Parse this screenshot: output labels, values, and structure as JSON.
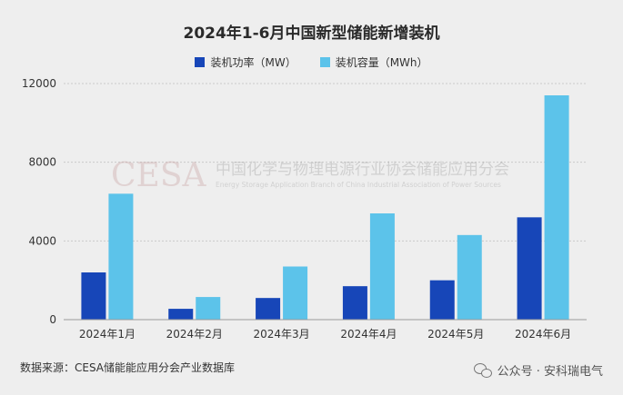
{
  "chart_data": {
    "type": "bar",
    "title": "2024年1-6月中国新型储能新增装机",
    "categories": [
      "2024年1月",
      "2024年2月",
      "2024年3月",
      "2024年4月",
      "2024年5月",
      "2024年6月"
    ],
    "series": [
      {
        "name": "装机功率（MW）",
        "color": "#1746b8",
        "values": [
          2400,
          550,
          1100,
          1700,
          2000,
          5200
        ]
      },
      {
        "name": "装机容量（MWh）",
        "color": "#5cc3ea",
        "values": [
          6400,
          1150,
          2700,
          5400,
          4300,
          11400
        ]
      }
    ],
    "ylim": [
      0,
      12000
    ],
    "yticks": [
      0,
      4000,
      8000,
      12000
    ],
    "grid": true,
    "legend_position": "top-center"
  },
  "watermark": {
    "logo": "CESA",
    "cn": "中国化学与物理电源行业协会储能应用分会",
    "en": "Energy Storage Application Branch of China Industrial Association of Power Sources"
  },
  "source": "数据来源：CESA储能能应用分会产业数据库",
  "footer": {
    "text": "公众号 · 安科瑞电气",
    "icon": "wechat-icon"
  }
}
